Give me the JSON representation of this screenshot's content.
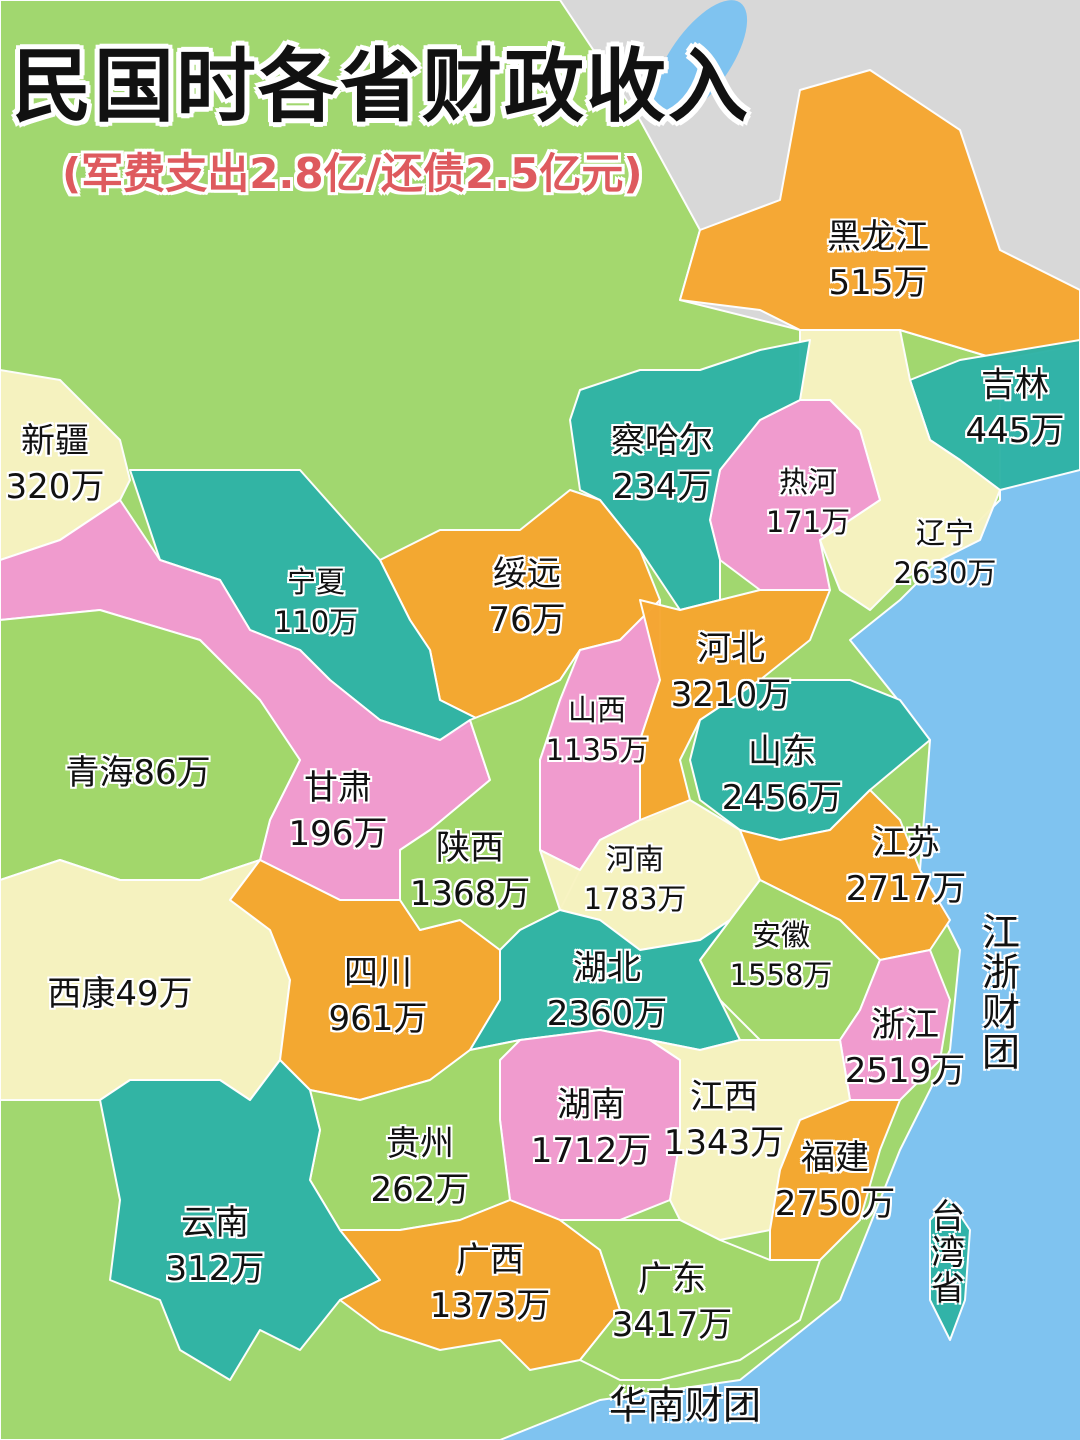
{
  "title": "民国时各省财政收入",
  "subtitle": "(军费支出2.8亿/还债2.5亿元)",
  "colors": {
    "sea": "#7fc3f0",
    "green": "#a3d86b",
    "orange": "#f6a730",
    "teal": "#2fb3a6",
    "pink": "#f39ad2",
    "cream": "#f8f3c2",
    "grey": "#d8d8d8",
    "subtitle": "#de5a5e"
  },
  "provinces": {
    "heilongjiang": {
      "name": "黑龙江",
      "revenue": "515万"
    },
    "jilin": {
      "name": "吉林",
      "revenue": "445万"
    },
    "chahar": {
      "name": "察哈尔",
      "revenue": "234万"
    },
    "rehe": {
      "name": "热河",
      "revenue": "171万"
    },
    "liaoning": {
      "name": "辽宁",
      "revenue": "2630万"
    },
    "xinjiang": {
      "name": "新疆",
      "revenue": "320万"
    },
    "ningxia": {
      "name": "宁夏",
      "revenue": "110万"
    },
    "suiyuan": {
      "name": "绥远",
      "revenue": "76万"
    },
    "hebei": {
      "name": "河北",
      "revenue": "3210万"
    },
    "shanxi": {
      "name": "山西",
      "revenue": "1135万"
    },
    "qinghai": {
      "name": "青海",
      "revenue": "86万"
    },
    "gansu": {
      "name": "甘肃",
      "revenue": "196万"
    },
    "shandong": {
      "name": "山东",
      "revenue": "2456万"
    },
    "shaanxi": {
      "name": "陕西",
      "revenue": "1368万"
    },
    "henan": {
      "name": "河南",
      "revenue": "1783万"
    },
    "jiangsu": {
      "name": "江苏",
      "revenue": "2717万"
    },
    "anhui": {
      "name": "安徽",
      "revenue": "1558万"
    },
    "sichuan": {
      "name": "四川",
      "revenue": "961万"
    },
    "xikang": {
      "name": "西康",
      "revenue": "49万"
    },
    "hubei": {
      "name": "湖北",
      "revenue": "2360万"
    },
    "zhejiang": {
      "name": "浙江",
      "revenue": "2519万"
    },
    "hunan": {
      "name": "湖南",
      "revenue": "1712万"
    },
    "jiangxi": {
      "name": "江西",
      "revenue": "1343万"
    },
    "guizhou": {
      "name": "贵州",
      "revenue": "262万"
    },
    "fujian": {
      "name": "福建",
      "revenue": "2750万"
    },
    "yunnan": {
      "name": "云南",
      "revenue": "312万"
    },
    "guangxi": {
      "name": "广西",
      "revenue": "1373万"
    },
    "guangdong": {
      "name": "广东",
      "revenue": "3417万"
    }
  },
  "annotations": {
    "jiangzhe_group": "江浙财团",
    "huanan_group": "华南财团",
    "taiwan": "台湾省"
  }
}
